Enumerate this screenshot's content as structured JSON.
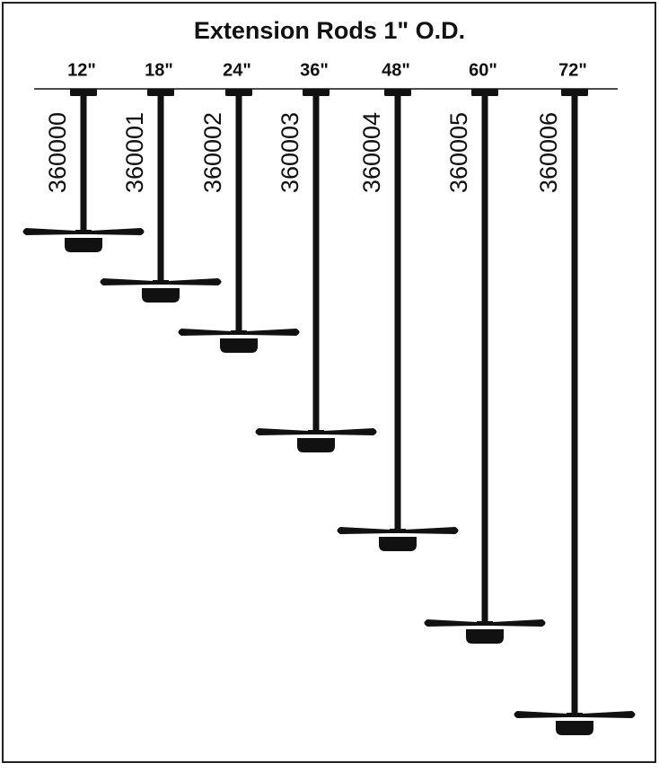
{
  "title": "Extension Rods 1\" O.D.",
  "rods": [
    {
      "size": "12\"",
      "part": "360000"
    },
    {
      "size": "18\"",
      "part": "360001"
    },
    {
      "size": "24\"",
      "part": "360002"
    },
    {
      "size": "36\"",
      "part": "360003"
    },
    {
      "size": "48\"",
      "part": "360004"
    },
    {
      "size": "60\"",
      "part": "360005"
    },
    {
      "size": "72\"",
      "part": "360006"
    }
  ]
}
